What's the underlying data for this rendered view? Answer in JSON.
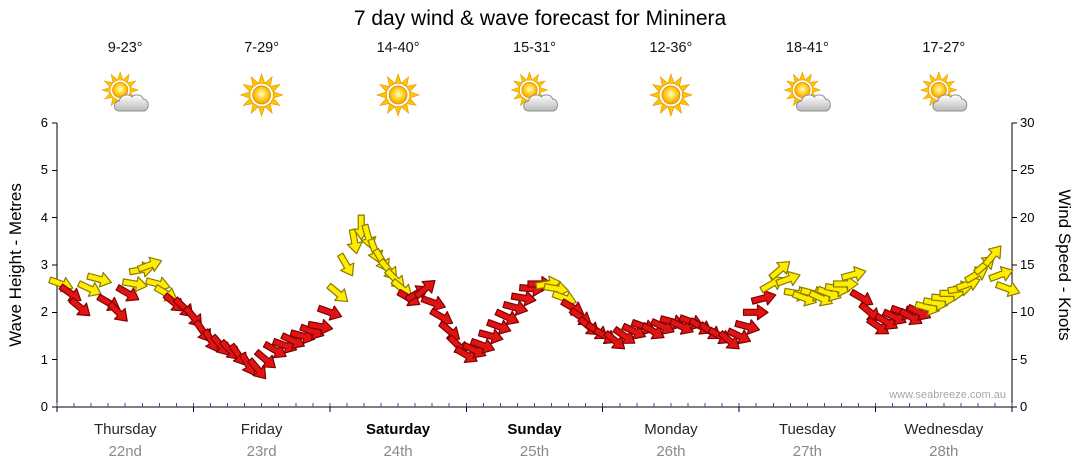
{
  "title": "7 day wind & wave forecast for Mininera",
  "watermark": "www.seabreeze.com.au",
  "axes": {
    "left_title": "Wave Height - Metres",
    "right_title": "Wind Speed - Knots",
    "left_ticks": [
      0,
      1,
      2,
      3,
      4,
      5,
      6
    ],
    "right_ticks": [
      0,
      5,
      10,
      15,
      20,
      25,
      30
    ]
  },
  "days": [
    {
      "name": "Thursday",
      "date": "22nd",
      "temp": "9-23°",
      "icon": "sun-cloud",
      "bold": false
    },
    {
      "name": "Friday",
      "date": "23rd",
      "temp": "7-29°",
      "icon": "sun",
      "bold": false
    },
    {
      "name": "Saturday",
      "date": "24th",
      "temp": "14-40°",
      "icon": "sun",
      "bold": true
    },
    {
      "name": "Sunday",
      "date": "25th",
      "temp": "15-31°",
      "icon": "sun-cloud",
      "bold": true
    },
    {
      "name": "Monday",
      "date": "26th",
      "temp": "12-36°",
      "icon": "sun",
      "bold": false
    },
    {
      "name": "Tuesday",
      "date": "27th",
      "temp": "18-41°",
      "icon": "sun-cloud",
      "bold": false
    },
    {
      "name": "Wednesday",
      "date": "28th",
      "temp": "17-27°",
      "icon": "sun-cloud",
      "bold": false
    }
  ],
  "colors": {
    "arrow_red_fill": "#e11414",
    "arrow_red_stroke": "#7e0000",
    "arrow_yellow_fill": "#ffec00",
    "arrow_yellow_stroke": "#8a7a00",
    "axis_line": "#000000",
    "minor_tick_blue": "#4444cc",
    "date_gray": "#8a8a8a",
    "watermark_gray": "#a6a6a6"
  },
  "chart_data": {
    "type": "scatter",
    "subtype": "wind-direction-arrows",
    "title": "7 day wind & wave forecast for Mininera",
    "x_axis": {
      "unit": "days",
      "range": [
        0,
        7
      ],
      "day_labels": [
        "Thursday 22nd",
        "Friday 23rd",
        "Saturday 24th",
        "Sunday 25th",
        "Monday 26th",
        "Tuesday 27th",
        "Wednesday 28th"
      ]
    },
    "y_left": {
      "label": "Wave Height - Metres",
      "range": [
        0,
        6
      ],
      "ticks": [
        0,
        1,
        2,
        3,
        4,
        5,
        6
      ]
    },
    "y_right": {
      "label": "Wind Speed - Knots",
      "range": [
        0,
        30
      ],
      "ticks": [
        0,
        5,
        10,
        15,
        20,
        25,
        30
      ]
    },
    "legend": "none",
    "grid": "off",
    "point_format": [
      "x_days",
      "wind_speed_knots",
      "color r=red y=yellow",
      "arrow_rotation_deg_cw_from_east"
    ],
    "points": [
      [
        0.03,
        13,
        "y",
        20
      ],
      [
        0.1,
        12,
        "r",
        35
      ],
      [
        0.17,
        10.5,
        "r",
        40
      ],
      [
        0.24,
        12.5,
        "y",
        25
      ],
      [
        0.31,
        13.5,
        "y",
        15
      ],
      [
        0.38,
        11,
        "r",
        30
      ],
      [
        0.45,
        10,
        "r",
        45
      ],
      [
        0.52,
        12,
        "r",
        30
      ],
      [
        0.57,
        13,
        "y",
        10
      ],
      [
        0.62,
        14.5,
        "y",
        -10
      ],
      [
        0.68,
        15,
        "y",
        -20
      ],
      [
        0.74,
        13,
        "y",
        15
      ],
      [
        0.8,
        12,
        "y",
        30
      ],
      [
        0.86,
        11,
        "r",
        40
      ],
      [
        0.93,
        10.5,
        "r",
        45
      ],
      [
        1.0,
        9.5,
        "r",
        50
      ],
      [
        1.07,
        8,
        "r",
        55
      ],
      [
        1.13,
        7,
        "r",
        60
      ],
      [
        1.2,
        6.5,
        "r",
        50
      ],
      [
        1.27,
        6,
        "r",
        45
      ],
      [
        1.33,
        5.5,
        "r",
        55
      ],
      [
        1.4,
        4.5,
        "r",
        60
      ],
      [
        1.47,
        4,
        "r",
        50
      ],
      [
        1.53,
        5,
        "r",
        40
      ],
      [
        1.6,
        6,
        "r",
        30
      ],
      [
        1.67,
        6.5,
        "r",
        20
      ],
      [
        1.73,
        7,
        "r",
        25
      ],
      [
        1.8,
        7.5,
        "r",
        15
      ],
      [
        1.87,
        8,
        "r",
        20
      ],
      [
        1.93,
        8.5,
        "r",
        10
      ],
      [
        2.0,
        10,
        "r",
        20
      ],
      [
        2.06,
        12,
        "y",
        40
      ],
      [
        2.12,
        15,
        "y",
        60
      ],
      [
        2.18,
        17.5,
        "y",
        80
      ],
      [
        2.23,
        19,
        "y",
        90
      ],
      [
        2.28,
        18,
        "y",
        75
      ],
      [
        2.33,
        16.5,
        "y",
        70
      ],
      [
        2.38,
        15.5,
        "y",
        60
      ],
      [
        2.43,
        14.5,
        "y",
        50
      ],
      [
        2.48,
        13.5,
        "y",
        45
      ],
      [
        2.53,
        12.5,
        "y",
        40
      ],
      [
        2.58,
        11.5,
        "r",
        30
      ],
      [
        2.64,
        12,
        "r",
        -30
      ],
      [
        2.7,
        12.5,
        "r",
        -40
      ],
      [
        2.76,
        11,
        "r",
        20
      ],
      [
        2.82,
        9.5,
        "r",
        30
      ],
      [
        2.88,
        8,
        "r",
        40
      ],
      [
        2.94,
        6.5,
        "r",
        45
      ],
      [
        3.0,
        5.5,
        "r",
        30
      ],
      [
        3.06,
        6,
        "r",
        25
      ],
      [
        3.12,
        6.5,
        "r",
        20
      ],
      [
        3.18,
        7.5,
        "r",
        15
      ],
      [
        3.24,
        8.5,
        "r",
        20
      ],
      [
        3.3,
        9.5,
        "r",
        25
      ],
      [
        3.36,
        10.5,
        "r",
        15
      ],
      [
        3.42,
        11.5,
        "r",
        10
      ],
      [
        3.48,
        12.5,
        "r",
        5
      ],
      [
        3.54,
        13,
        "r",
        0
      ],
      [
        3.6,
        13,
        "y",
        -10
      ],
      [
        3.66,
        12.5,
        "y",
        10
      ],
      [
        3.72,
        11.5,
        "y",
        20
      ],
      [
        3.78,
        10.5,
        "r",
        30
      ],
      [
        3.84,
        9.5,
        "r",
        35
      ],
      [
        3.9,
        8.5,
        "r",
        40
      ],
      [
        3.96,
        8,
        "r",
        35
      ],
      [
        4.02,
        7.5,
        "r",
        30
      ],
      [
        4.09,
        7,
        "r",
        40
      ],
      [
        4.16,
        7.5,
        "r",
        35
      ],
      [
        4.23,
        8,
        "r",
        25
      ],
      [
        4.3,
        8.5,
        "r",
        20
      ],
      [
        4.37,
        8,
        "r",
        30
      ],
      [
        4.44,
        8.5,
        "r",
        25
      ],
      [
        4.51,
        9,
        "r",
        15
      ],
      [
        4.58,
        8.5,
        "r",
        25
      ],
      [
        4.65,
        9,
        "r",
        20
      ],
      [
        4.72,
        8.5,
        "r",
        30
      ],
      [
        4.79,
        8,
        "r",
        35
      ],
      [
        4.86,
        7.5,
        "r",
        30
      ],
      [
        4.93,
        7,
        "r",
        40
      ],
      [
        5.0,
        7.5,
        "r",
        25
      ],
      [
        5.06,
        8.5,
        "r",
        15
      ],
      [
        5.12,
        10,
        "r",
        0
      ],
      [
        5.18,
        11.5,
        "r",
        -15
      ],
      [
        5.24,
        13,
        "y",
        -30
      ],
      [
        5.3,
        14.5,
        "y",
        -40
      ],
      [
        5.36,
        13.5,
        "y",
        -20
      ],
      [
        5.42,
        12,
        "y",
        10
      ],
      [
        5.48,
        11.5,
        "y",
        20
      ],
      [
        5.54,
        12,
        "y",
        15
      ],
      [
        5.6,
        11.5,
        "y",
        25
      ],
      [
        5.66,
        12,
        "y",
        20
      ],
      [
        5.72,
        12.5,
        "y",
        10
      ],
      [
        5.78,
        13,
        "y",
        0
      ],
      [
        5.84,
        14,
        "y",
        -15
      ],
      [
        5.9,
        11.5,
        "r",
        30
      ],
      [
        5.96,
        10,
        "r",
        40
      ],
      [
        6.02,
        8.5,
        "r",
        35
      ],
      [
        6.08,
        9,
        "r",
        30
      ],
      [
        6.14,
        9.5,
        "r",
        25
      ],
      [
        6.2,
        10,
        "r",
        20
      ],
      [
        6.26,
        9.5,
        "r",
        30
      ],
      [
        6.32,
        10,
        "r",
        25
      ],
      [
        6.38,
        10.5,
        "y",
        15
      ],
      [
        6.44,
        11,
        "y",
        10
      ],
      [
        6.5,
        11.5,
        "y",
        5
      ],
      [
        6.56,
        12,
        "y",
        0
      ],
      [
        6.62,
        12.5,
        "y",
        -10
      ],
      [
        6.68,
        13,
        "y",
        -20
      ],
      [
        6.74,
        14,
        "y",
        -30
      ],
      [
        6.8,
        15,
        "y",
        -40
      ],
      [
        6.86,
        16,
        "y",
        -50
      ],
      [
        6.92,
        14,
        "y",
        -20
      ],
      [
        6.97,
        12.5,
        "y",
        20
      ]
    ]
  }
}
